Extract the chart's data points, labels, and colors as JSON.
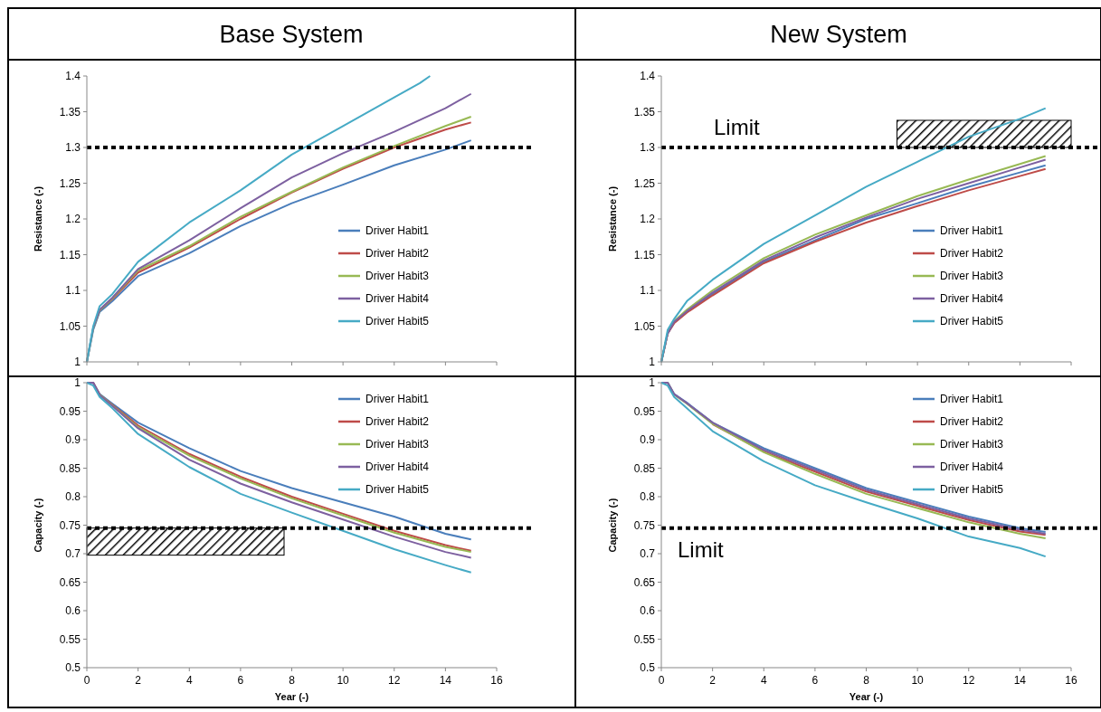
{
  "chart_data": [
    {
      "type": "line",
      "title": "Base System",
      "ylabel": "Resistance (-)",
      "x": [
        0,
        0.25,
        0.5,
        1,
        2,
        4,
        6,
        8,
        10,
        12,
        14,
        15
      ],
      "xlim": [
        0,
        16
      ],
      "xticks": [
        0,
        2,
        4,
        6,
        8,
        10,
        12,
        14,
        16
      ],
      "ylim": [
        1,
        1.4
      ],
      "yticks": [
        1,
        1.05,
        1.1,
        1.15,
        1.2,
        1.25,
        1.3,
        1.35,
        1.4
      ],
      "tick_labels": "y",
      "grid": false,
      "legend": "bottom right",
      "marker": "none",
      "line_style": "solid",
      "series": [
        {
          "name": "Driver Habit1",
          "color": "#4a7ebb",
          "values": [
            1,
            1.045,
            1.07,
            1.085,
            1.12,
            1.152,
            1.19,
            1.222,
            1.248,
            1.275,
            1.297,
            1.31
          ]
        },
        {
          "name": "Driver Habit2",
          "color": "#be4b48",
          "values": [
            null,
            null,
            1.072,
            1.088,
            1.125,
            1.16,
            1.2,
            1.237,
            1.27,
            1.3,
            1.325,
            1.335
          ]
        },
        {
          "name": "Driver Habit3",
          "color": "#98b954",
          "values": [
            1,
            1.047,
            1.072,
            1.089,
            1.128,
            1.162,
            1.203,
            1.238,
            1.272,
            1.302,
            1.33,
            1.343
          ]
        },
        {
          "name": "Driver Habit4",
          "color": "#7d60a0",
          "values": [
            1,
            1.048,
            1.073,
            1.09,
            1.13,
            1.17,
            1.215,
            1.258,
            1.292,
            1.322,
            1.355,
            1.375
          ]
        },
        {
          "name": "Driver Habit5",
          "color": "#46aac5",
          "x": [
            0,
            0.25,
            0.5,
            1,
            2,
            4,
            6,
            8,
            10,
            12,
            13,
            13.4
          ],
          "values": [
            1,
            1.05,
            1.078,
            1.095,
            1.14,
            1.195,
            1.24,
            1.29,
            1.33,
            1.37,
            1.39,
            1.4
          ]
        }
      ],
      "ref_lines": [
        {
          "axis": "y",
          "value": 1.3
        }
      ]
    },
    {
      "type": "line",
      "title": "New System",
      "ylabel": "Resistance (-)",
      "x": [
        0,
        0.25,
        0.5,
        1,
        2,
        4,
        6,
        8,
        10,
        12,
        14,
        15
      ],
      "xlim": [
        0,
        16
      ],
      "xticks": [
        0,
        2,
        4,
        6,
        8,
        10,
        12,
        14,
        16
      ],
      "ylim": [
        1,
        1.4
      ],
      "yticks": [
        1,
        1.05,
        1.1,
        1.15,
        1.2,
        1.25,
        1.3,
        1.35,
        1.4
      ],
      "tick_labels": "y",
      "grid": false,
      "legend": "bottom right",
      "marker": "none",
      "line_style": "solid",
      "series": [
        {
          "name": "Driver Habit1",
          "color": "#4a7ebb",
          "values": [
            1,
            1.04,
            1.055,
            1.07,
            1.095,
            1.14,
            1.17,
            1.2,
            1.222,
            1.245,
            1.265,
            1.275
          ]
        },
        {
          "name": "Driver Habit2",
          "color": "#be4b48",
          "values": [
            1,
            1.04,
            1.054,
            1.069,
            1.093,
            1.138,
            1.168,
            1.195,
            1.218,
            1.24,
            1.26,
            1.27
          ]
        },
        {
          "name": "Driver Habit3",
          "color": "#98b954",
          "values": [
            1,
            1.041,
            1.057,
            1.073,
            1.1,
            1.145,
            1.178,
            1.205,
            1.232,
            1.255,
            1.277,
            1.288
          ]
        },
        {
          "name": "Driver Habit4",
          "color": "#7d60a0",
          "values": [
            1,
            1.04,
            1.056,
            1.071,
            1.097,
            1.142,
            1.174,
            1.202,
            1.228,
            1.25,
            1.272,
            1.283
          ]
        },
        {
          "name": "Driver Habit5",
          "color": "#46aac5",
          "values": [
            1,
            1.045,
            1.06,
            1.085,
            1.115,
            1.165,
            1.205,
            1.245,
            1.28,
            1.315,
            1.34,
            1.355
          ]
        }
      ],
      "ref_lines": [
        {
          "axis": "y",
          "value": 1.3,
          "label": "Limit"
        }
      ],
      "bands": [
        {
          "axis": "x",
          "from": 9.2,
          "to": 16
        }
      ]
    },
    {
      "type": "line",
      "xlabel": "Year (-)",
      "ylabel": "Capacity (-)",
      "x": [
        0,
        0.25,
        0.5,
        1,
        2,
        4,
        6,
        8,
        10,
        12,
        14,
        15
      ],
      "xlim": [
        0,
        16
      ],
      "xticks": [
        0,
        2,
        4,
        6,
        8,
        10,
        12,
        14,
        16
      ],
      "ylim": [
        0.5,
        1
      ],
      "yticks": [
        0.5,
        0.55,
        0.6,
        0.65,
        0.7,
        0.75,
        0.8,
        0.85,
        0.9,
        0.95,
        1
      ],
      "grid": false,
      "legend": "top right",
      "marker": "none",
      "line_style": "solid",
      "series": [
        {
          "name": "Driver Habit1",
          "color": "#4a7ebb",
          "values": [
            1,
            1,
            0.98,
            0.963,
            0.93,
            0.885,
            0.845,
            0.815,
            0.79,
            0.765,
            0.735,
            0.725
          ]
        },
        {
          "name": "Driver Habit2",
          "color": "#be4b48",
          "values": [
            1,
            1,
            0.979,
            0.961,
            0.925,
            0.875,
            0.835,
            0.8,
            0.77,
            0.74,
            0.715,
            0.705
          ]
        },
        {
          "name": "Driver Habit3",
          "color": "#98b954",
          "values": [
            null,
            null,
            0.979,
            0.96,
            0.922,
            0.872,
            0.832,
            0.797,
            0.767,
            0.737,
            0.712,
            0.703
          ]
        },
        {
          "name": "Driver Habit4",
          "color": "#7d60a0",
          "values": [
            1,
            1,
            0.978,
            0.959,
            0.92,
            0.865,
            0.823,
            0.79,
            0.76,
            0.73,
            0.703,
            0.693
          ]
        },
        {
          "name": "Driver Habit5",
          "color": "#46aac5",
          "values": [
            1,
            0.995,
            0.975,
            0.955,
            0.91,
            0.852,
            0.805,
            0.772,
            0.74,
            0.708,
            0.68,
            0.667
          ]
        }
      ],
      "ref_lines": [
        {
          "axis": "y",
          "value": 0.745
        }
      ],
      "bands": [
        {
          "axis": "x",
          "from": 0,
          "to": 7.7
        }
      ]
    },
    {
      "type": "line",
      "xlabel": "Year (-)",
      "ylabel": "Capacity (-)",
      "x": [
        0,
        0.25,
        0.5,
        1,
        2,
        4,
        6,
        8,
        10,
        12,
        14,
        15
      ],
      "xlim": [
        0,
        16
      ],
      "xticks": [
        0,
        2,
        4,
        6,
        8,
        10,
        12,
        14,
        16
      ],
      "ylim": [
        0.5,
        1
      ],
      "yticks": [
        0.5,
        0.55,
        0.6,
        0.65,
        0.7,
        0.75,
        0.8,
        0.85,
        0.9,
        0.95,
        1
      ],
      "grid": false,
      "legend": "top right",
      "marker": "none",
      "line_style": "solid",
      "series": [
        {
          "name": "Driver Habit1",
          "color": "#4a7ebb",
          "values": [
            1,
            1,
            0.98,
            0.965,
            0.93,
            0.885,
            0.85,
            0.815,
            0.79,
            0.765,
            0.745,
            0.738
          ]
        },
        {
          "name": "Driver Habit2",
          "color": "#be4b48",
          "values": [
            null,
            null,
            null,
            null,
            0.927,
            0.879,
            0.844,
            0.809,
            0.784,
            0.759,
            0.739,
            0.733
          ]
        },
        {
          "name": "Driver Habit3",
          "color": "#98b954",
          "values": [
            1,
            1,
            0.979,
            0.963,
            0.928,
            0.878,
            0.84,
            0.805,
            0.78,
            0.755,
            0.735,
            0.727
          ]
        },
        {
          "name": "Driver Habit4",
          "color": "#7d60a0",
          "values": [
            1,
            1,
            0.98,
            0.964,
            0.93,
            0.882,
            0.847,
            0.812,
            0.787,
            0.762,
            0.742,
            0.735
          ]
        },
        {
          "name": "Driver Habit5",
          "color": "#46aac5",
          "values": [
            1,
            0.995,
            0.975,
            0.955,
            0.915,
            0.862,
            0.82,
            0.79,
            0.762,
            0.73,
            0.71,
            0.695
          ]
        }
      ],
      "ref_lines": [
        {
          "axis": "y",
          "value": 0.745,
          "label": "Limit"
        }
      ]
    }
  ]
}
